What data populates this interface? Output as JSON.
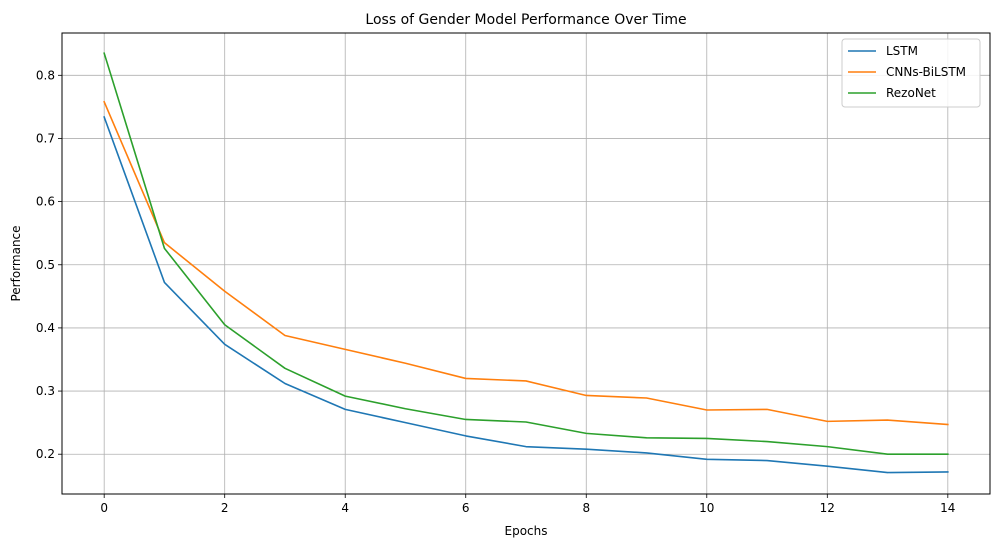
{
  "chart_data": {
    "type": "line",
    "title": "Loss of Gender Model Performance Over Time",
    "xlabel": "Epochs",
    "ylabel": "Performance",
    "xlim": [
      -0.7,
      14.7
    ],
    "ylim": [
      0.137,
      0.867
    ],
    "xticks": [
      0,
      2,
      4,
      6,
      8,
      10,
      12,
      14
    ],
    "yticks": [
      0.2,
      0.3,
      0.4,
      0.5,
      0.6,
      0.7,
      0.8
    ],
    "grid": true,
    "legend_position": "top-right",
    "x": [
      0,
      1,
      2,
      3,
      4,
      5,
      6,
      7,
      8,
      9,
      10,
      11,
      12,
      13,
      14
    ],
    "series": [
      {
        "name": "LSTM",
        "color": "#1f77b4",
        "values": [
          0.734,
          0.472,
          0.374,
          0.312,
          0.271,
          0.25,
          0.229,
          0.212,
          0.208,
          0.202,
          0.192,
          0.19,
          0.181,
          0.171,
          0.172
        ]
      },
      {
        "name": "CNNs-BiLSTM",
        "color": "#ff7f0e",
        "values": [
          0.758,
          0.535,
          0.458,
          0.388,
          0.366,
          0.344,
          0.32,
          0.316,
          0.293,
          0.289,
          0.27,
          0.271,
          0.252,
          0.254,
          0.247
        ]
      },
      {
        "name": "RezoNet",
        "color": "#2ca02c",
        "values": [
          0.835,
          0.526,
          0.405,
          0.336,
          0.292,
          0.272,
          0.255,
          0.251,
          0.233,
          0.226,
          0.225,
          0.22,
          0.212,
          0.2,
          0.2
        ]
      }
    ]
  }
}
